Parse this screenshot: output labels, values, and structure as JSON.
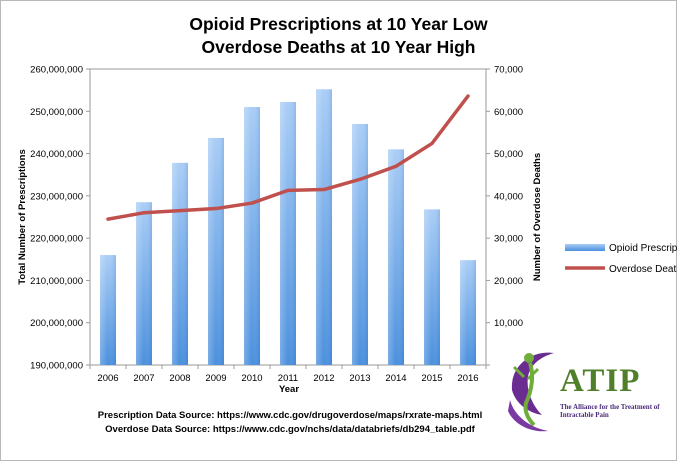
{
  "chart_data": {
    "type": "bar+line",
    "title_line1": "Opioid Prescriptions at 10 Year Low",
    "title_line2": "Overdose Deaths at 10 Year High",
    "xlabel": "Year",
    "ylabel_left": "Total Number of Prescriptions",
    "ylabel_right": "Number of Overdose Deaths",
    "categories": [
      "2006",
      "2007",
      "2008",
      "2009",
      "2010",
      "2011",
      "2012",
      "2013",
      "2014",
      "2015",
      "2016"
    ],
    "ylim_left": [
      190000000,
      260000000
    ],
    "ylim_right": [
      0,
      70000
    ],
    "left_ticks": [
      "190,000,000",
      "200,000,000",
      "210,000,000",
      "220,000,000",
      "230,000,000",
      "240,000,000",
      "250,000,000",
      "260,000,000"
    ],
    "right_ticks": [
      "",
      "10,000",
      "20,000",
      "30,000",
      "40,000",
      "50,000",
      "60,000",
      "70,000"
    ],
    "series": [
      {
        "name": "Opioid Prescriptions",
        "kind": "bar",
        "axis": "left",
        "color": "#7fb2ec",
        "values": [
          216000000,
          228500000,
          237800000,
          243700000,
          251000000,
          252200000,
          255200000,
          247000000,
          241000000,
          226800000,
          214800000
        ]
      },
      {
        "name": "Overdose Deaths",
        "kind": "line",
        "axis": "right",
        "color": "#c0504d",
        "values": [
          34500,
          36000,
          36500,
          37000,
          38300,
          41300,
          41500,
          43900,
          47000,
          52400,
          63600
        ]
      }
    ],
    "legend_position": "right",
    "grid": false
  },
  "sources": {
    "prescription": "Prescription Data Source:  https://www.cdc.gov/drugoverdose/maps/rxrate-maps.html",
    "overdose": "Overdose Data Source:  https://www.cdc.gov/nchs/data/databriefs/db294_table.pdf"
  },
  "logo": {
    "name": "ATIP",
    "tagline": "The Alliance for the Treatment of Intractable Pain"
  }
}
